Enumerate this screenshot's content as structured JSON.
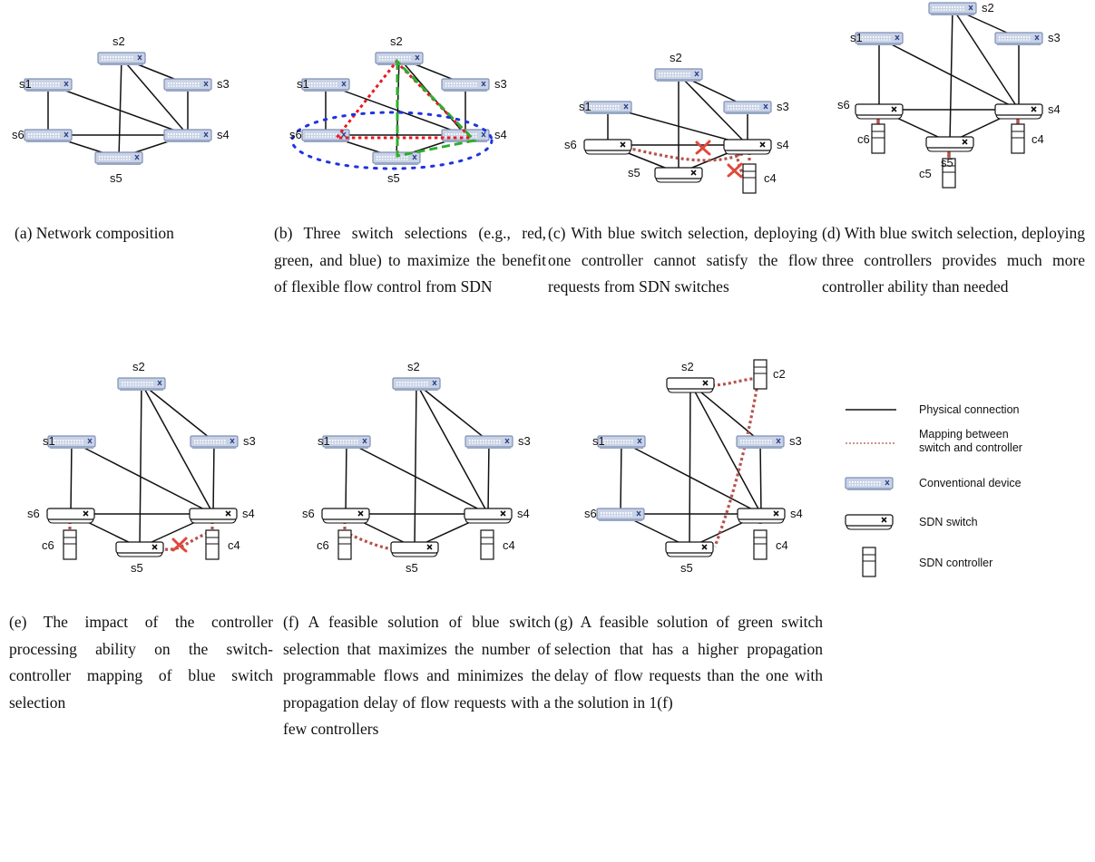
{
  "colors": {
    "conventional_fill": "#c9d3e6",
    "conventional_stroke": "#7f8fb5",
    "mapping": "#b5524c",
    "cross": "#e0483a",
    "selection_red": "#e8191f",
    "selection_green": "#2eae2e",
    "selection_blue": "#1f33e0"
  },
  "nodes": {
    "s1": "s1",
    "s2": "s2",
    "s3": "s3",
    "s4": "s4",
    "s5": "s5",
    "s6": "s6",
    "c2": "c2",
    "c4": "c4",
    "c5": "c5",
    "c6": "c6"
  },
  "captions": {
    "a": "(a) Network composition",
    "b": "(b) Three switch selections (e.g., red, green, and blue) to maximize the benefit of flexible flow control from SDN",
    "c": "(c) With blue switch selection, deploying one controller cannot satisfy the flow requests from SDN switches",
    "d": "(d) With blue switch selection, deploying three controllers provides much more controller ability than needed",
    "e": "(e) The impact of the controller processing ability on the switch-controller mapping of blue switch selection",
    "f": "(f) A feasible solution of blue switch selection that maximizes the number of programmable flows and minimizes the propagation delay of flow requests with a few controllers",
    "g": "(g) A feasible solution of green switch selection that has a higher propagation delay of flow requests than the one with the solution in 1(f)"
  },
  "legend": {
    "physical": "Physical connection",
    "mapping": "Mapping between switch and controller",
    "conventional": "Conventional device",
    "sdn_switch": "SDN switch",
    "controller": "SDN controller"
  }
}
